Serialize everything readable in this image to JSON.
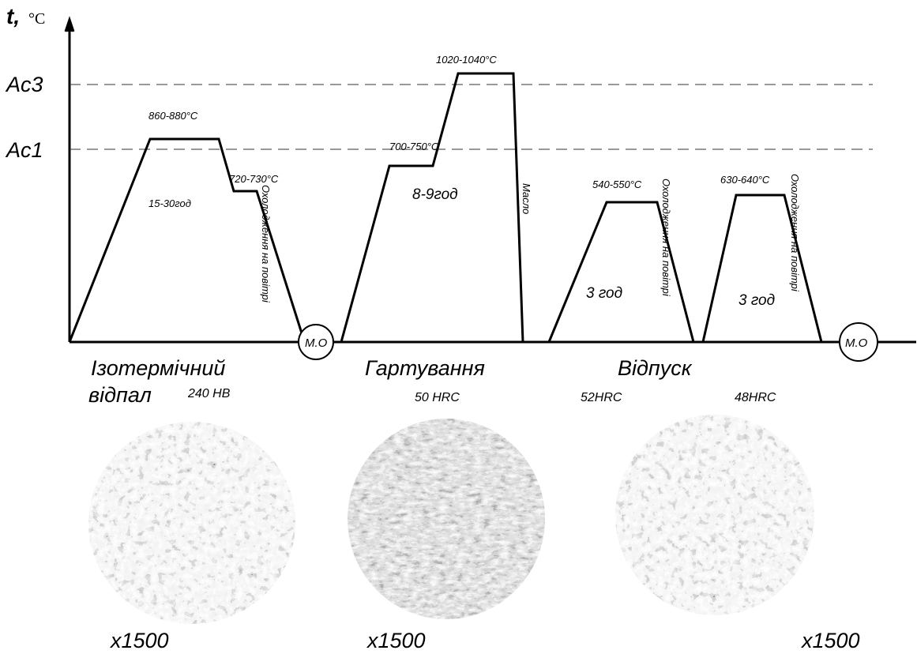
{
  "axis": {
    "label": "t,",
    "unit": "°C"
  },
  "levels": {
    "ac3": "Ac3",
    "ac1": "Ac1"
  },
  "annealing": {
    "temp_high": "860-880°C",
    "temp_hold": "720-730°C",
    "time": "15-30год",
    "cooling": "Охолодження на повітрі",
    "mo": "М.О",
    "name_line1": "Ізотермічний",
    "name_line2": "відпал",
    "hardness": "240 НВ"
  },
  "hardening": {
    "temp_high": "1020-1040°C",
    "temp_pre": "700-750°C",
    "time": "8-9год",
    "cooling": "Масло",
    "name": "Гартування",
    "hardness": "50 HRC"
  },
  "tempering": {
    "name": "Відпуск",
    "first": {
      "temp": "540-550°C",
      "cooling": "Охолодження на повітрі",
      "time": "3 год",
      "hardness": "52HRC"
    },
    "second": {
      "temp": "630-640°C",
      "cooling": "Охолодження на повітрі",
      "time": "3 год",
      "hardness": "48HRC",
      "mo": "М.О"
    }
  },
  "micrographs": [
    "x1500",
    "x1500",
    "x1500"
  ]
}
